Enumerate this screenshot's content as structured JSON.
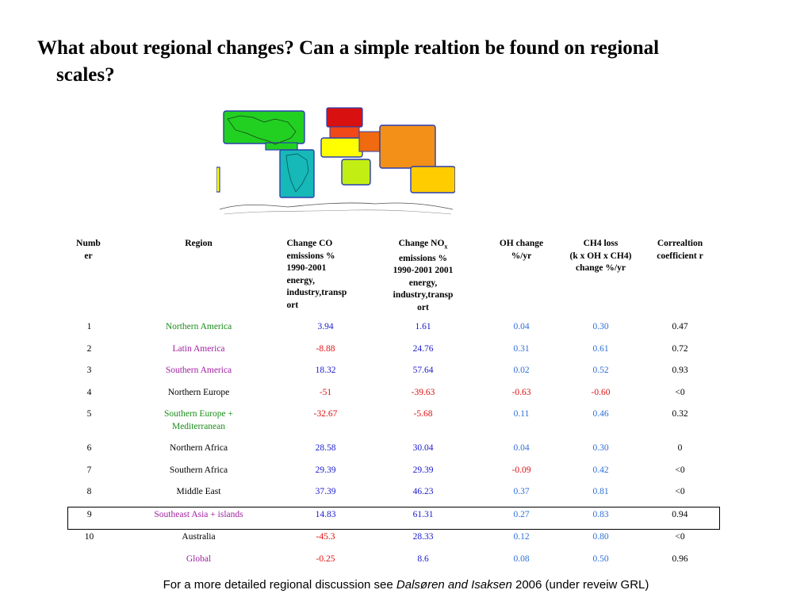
{
  "title": {
    "line1": "What about regional changes? Can a simple realtion be found on regional",
    "line2": "scales?"
  },
  "map_regions": [
    {
      "region": "Northern America",
      "color": "#22d022"
    },
    {
      "region": "Latin America",
      "color": "#22d022"
    },
    {
      "region": "Southern America",
      "color": "#16b8b8"
    },
    {
      "region": "Northern Europe",
      "color": "#d81010"
    },
    {
      "region": "Southern Europe + Mediterranean",
      "color": "#f04818"
    },
    {
      "region": "Northern Africa",
      "color": "#ffff00"
    },
    {
      "region": "Middle East",
      "color": "#f06a10"
    },
    {
      "region": "Southeast Asia + islands",
      "color": "#f39018"
    },
    {
      "region": "Southern Africa",
      "color": "#c2ee14"
    },
    {
      "region": "Australia",
      "color": "#ffcc00"
    }
  ],
  "table": {
    "headers": {
      "number": [
        "Numb",
        "er"
      ],
      "region": [
        "Region"
      ],
      "co": [
        "Change CO",
        "emissions %",
        "1990-2001",
        "energy,",
        "industry,transp",
        "ort"
      ],
      "nox_pre": "Change NO",
      "nox_sub": "x",
      "nox": [
        "emissions %",
        "1990-2001 2001",
        "energy,",
        "industry,transp",
        "ort"
      ],
      "oh": [
        "OH change",
        "%/yr"
      ],
      "ch4": [
        "CH4 loss",
        "(k x OH x CH4)",
        "change %/yr"
      ],
      "corr": [
        "Correaltion",
        "coefficient r"
      ]
    },
    "rows": [
      {
        "num": "1",
        "region": "Northern America",
        "region_color": "green",
        "co": "3.94",
        "co_color": "blue",
        "nox": "1.61",
        "nox_color": "blue",
        "oh": "0.04",
        "oh_color": "lblue",
        "ch4": "0.30",
        "ch4_color": "lblue",
        "r": "0.47"
      },
      {
        "num": "2",
        "region": "Latin America",
        "region_color": "purple",
        "co": "-8.88",
        "co_color": "red",
        "nox": "24.76",
        "nox_color": "blue",
        "oh": "0.31",
        "oh_color": "lblue",
        "ch4": "0.61",
        "ch4_color": "lblue",
        "r": "0.72"
      },
      {
        "num": "3",
        "region": "Southern America",
        "region_color": "purple",
        "co": "18.32",
        "co_color": "blue",
        "nox": "57.64",
        "nox_color": "blue",
        "oh": "0.02",
        "oh_color": "lblue",
        "ch4": "0.52",
        "ch4_color": "lblue",
        "r": "0.93"
      },
      {
        "num": "4",
        "region": "Northern Europe",
        "region_color": "black",
        "co": "-51",
        "co_color": "red",
        "nox": "-39.63",
        "nox_color": "red",
        "oh": "-0.63",
        "oh_color": "red",
        "ch4": "-0.60",
        "ch4_color": "red",
        "r": "<0"
      },
      {
        "num": "5",
        "region": "Southern Europe + Mediterranean",
        "region_line1": "Southern Europe +",
        "region_line2": "Mediterranean",
        "region_color": "green",
        "co": "-32.67",
        "co_color": "red",
        "nox": "-5.68",
        "nox_color": "red",
        "oh": "0.11",
        "oh_color": "lblue",
        "ch4": "0.46",
        "ch4_color": "lblue",
        "r": "0.32"
      },
      {
        "num": "6",
        "region": "Northern Africa",
        "region_color": "black",
        "co": "28.58",
        "co_color": "blue",
        "nox": "30.04",
        "nox_color": "blue",
        "oh": "0.04",
        "oh_color": "lblue",
        "ch4": "0.30",
        "ch4_color": "lblue",
        "r": "0"
      },
      {
        "num": "7",
        "region": "Southern Africa",
        "region_color": "black",
        "co": "29.39",
        "co_color": "blue",
        "nox": "29.39",
        "nox_color": "blue",
        "oh": "-0.09",
        "oh_color": "red",
        "ch4": "0.42",
        "ch4_color": "lblue",
        "r": "<0"
      },
      {
        "num": "8",
        "region": "Middle East",
        "region_color": "black",
        "co": "37.39",
        "co_color": "blue",
        "nox": "46.23",
        "nox_color": "blue",
        "oh": "0.37",
        "oh_color": "lblue",
        "ch4": "0.81",
        "ch4_color": "lblue",
        "r": "<0"
      },
      {
        "num": "9",
        "region": "Southeast Asia + islands",
        "region_color": "purple",
        "co": "14.83",
        "co_color": "blue",
        "nox": "61.31",
        "nox_color": "blue",
        "oh": "0.27",
        "oh_color": "lblue",
        "ch4": "0.83",
        "ch4_color": "lblue",
        "r": "0.94",
        "highlighted": true
      },
      {
        "num": "10",
        "region": "Australia",
        "region_color": "black",
        "co": "-45.3",
        "co_color": "red",
        "nox": "28.33",
        "nox_color": "blue",
        "oh": "0.12",
        "oh_color": "lblue",
        "ch4": "0.80",
        "ch4_color": "lblue",
        "r": "<0"
      },
      {
        "num": "",
        "region": "Global",
        "region_color": "purple",
        "co": "-0.25",
        "co_color": "red",
        "nox": "8.6",
        "nox_color": "blue",
        "oh": "0.08",
        "oh_color": "lblue",
        "ch4": "0.50",
        "ch4_color": "lblue",
        "r": "0.96"
      }
    ]
  },
  "colors": {
    "green": "#1a8c1a",
    "purple": "#a020a0",
    "blue": "#1a1acc",
    "red": "#e01010",
    "lblue": "#2f6fd8",
    "black": "#000000"
  },
  "footer": {
    "pre": "For a more detailed regional discussion see ",
    "authors": "Dalsøren and Isaksen",
    "post": " 2006 (under reveiw GRL)"
  }
}
